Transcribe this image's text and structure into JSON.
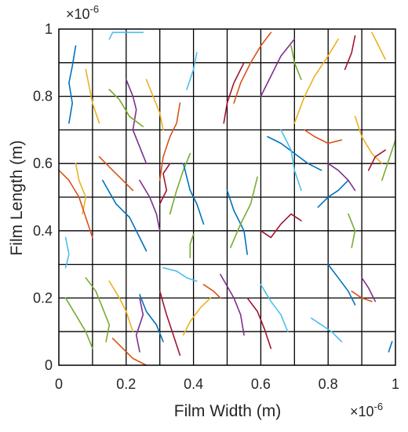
{
  "chart_data": {
    "type": "line",
    "xlabel": "Film Width (m)",
    "ylabel": "Film Length (m)",
    "xlim": [
      0,
      1
    ],
    "ylim": [
      0,
      1
    ],
    "x_exponent": "×10",
    "x_exponent_power": "-6",
    "y_exponent": "×10",
    "y_exponent_power": "-6",
    "x_ticks": [
      "0",
      "0.2",
      "0.4",
      "0.6",
      "0.8",
      "1"
    ],
    "y_ticks": [
      "0",
      "0.2",
      "0.4",
      "0.6",
      "0.8",
      "1"
    ],
    "grid": true,
    "grid_lines": [
      0.1,
      0.2,
      0.3,
      0.4,
      0.5,
      0.6,
      0.7,
      0.8,
      0.9
    ],
    "grid_color": "#000000",
    "palette": [
      "#0072BD",
      "#D95319",
      "#EDB120",
      "#7E2F8E",
      "#77AC30",
      "#4DBEEE",
      "#A2142F"
    ],
    "series": [
      {
        "color_index": 0,
        "points": [
          [
            0.05,
            0.95
          ],
          [
            0.04,
            0.89
          ],
          [
            0.03,
            0.84
          ],
          [
            0.04,
            0.78
          ],
          [
            0.03,
            0.72
          ]
        ]
      },
      {
        "color_index": 5,
        "points": [
          [
            0.15,
            0.97
          ],
          [
            0.16,
            0.99
          ],
          [
            0.25,
            0.99
          ]
        ]
      },
      {
        "color_index": 2,
        "points": [
          [
            0.08,
            0.88
          ],
          [
            0.09,
            0.83
          ],
          [
            0.1,
            0.78
          ],
          [
            0.12,
            0.72
          ]
        ]
      },
      {
        "color_index": 1,
        "points": [
          [
            0.12,
            0.62
          ],
          [
            0.16,
            0.58
          ],
          [
            0.19,
            0.55
          ],
          [
            0.22,
            0.52
          ]
        ]
      },
      {
        "color_index": 3,
        "points": [
          [
            0.2,
            0.85
          ],
          [
            0.22,
            0.8
          ],
          [
            0.23,
            0.76
          ],
          [
            0.22,
            0.7
          ],
          [
            0.24,
            0.65
          ],
          [
            0.26,
            0.6
          ]
        ]
      },
      {
        "color_index": 4,
        "points": [
          [
            0.15,
            0.82
          ],
          [
            0.18,
            0.79
          ],
          [
            0.21,
            0.74
          ],
          [
            0.25,
            0.71
          ]
        ]
      },
      {
        "color_index": 0,
        "points": [
          [
            0.13,
            0.55
          ],
          [
            0.17,
            0.48
          ],
          [
            0.21,
            0.44
          ],
          [
            0.24,
            0.38
          ],
          [
            0.26,
            0.34
          ]
        ]
      },
      {
        "color_index": 2,
        "points": [
          [
            0.26,
            0.85
          ],
          [
            0.28,
            0.8
          ],
          [
            0.3,
            0.75
          ],
          [
            0.31,
            0.7
          ]
        ]
      },
      {
        "color_index": 1,
        "points": [
          [
            0.3,
            0.55
          ],
          [
            0.31,
            0.62
          ],
          [
            0.33,
            0.68
          ],
          [
            0.35,
            0.72
          ],
          [
            0.36,
            0.78
          ]
        ]
      },
      {
        "color_index": 6,
        "points": [
          [
            0.3,
            0.48
          ],
          [
            0.32,
            0.52
          ],
          [
            0.31,
            0.57
          ],
          [
            0.33,
            0.6
          ]
        ]
      },
      {
        "color_index": 4,
        "points": [
          [
            0.33,
            0.45
          ],
          [
            0.35,
            0.52
          ],
          [
            0.37,
            0.58
          ],
          [
            0.39,
            0.63
          ]
        ]
      },
      {
        "color_index": 0,
        "points": [
          [
            0.37,
            0.6
          ],
          [
            0.39,
            0.52
          ],
          [
            0.41,
            0.48
          ],
          [
            0.43,
            0.42
          ]
        ]
      },
      {
        "color_index": 3,
        "points": [
          [
            0.24,
            0.55
          ],
          [
            0.27,
            0.5
          ],
          [
            0.29,
            0.45
          ],
          [
            0.3,
            0.4
          ]
        ]
      },
      {
        "color_index": 5,
        "points": [
          [
            0.38,
            0.82
          ],
          [
            0.4,
            0.88
          ],
          [
            0.41,
            0.93
          ]
        ]
      },
      {
        "color_index": 2,
        "points": [
          [
            0.05,
            0.6
          ],
          [
            0.06,
            0.55
          ],
          [
            0.08,
            0.5
          ],
          [
            0.07,
            0.45
          ]
        ]
      },
      {
        "color_index": 1,
        "points": [
          [
            0.0,
            0.58
          ],
          [
            0.03,
            0.55
          ],
          [
            0.06,
            0.5
          ],
          [
            0.08,
            0.44
          ],
          [
            0.1,
            0.38
          ]
        ]
      },
      {
        "color_index": 5,
        "points": [
          [
            0.02,
            0.38
          ],
          [
            0.03,
            0.33
          ],
          [
            0.02,
            0.29
          ]
        ]
      },
      {
        "color_index": 4,
        "points": [
          [
            0.02,
            0.2
          ],
          [
            0.05,
            0.15
          ],
          [
            0.08,
            0.1
          ],
          [
            0.1,
            0.05
          ]
        ]
      },
      {
        "color_index": 4,
        "points": [
          [
            0.08,
            0.26
          ],
          [
            0.11,
            0.22
          ],
          [
            0.13,
            0.17
          ],
          [
            0.15,
            0.12
          ],
          [
            0.14,
            0.07
          ]
        ]
      },
      {
        "color_index": 2,
        "points": [
          [
            0.15,
            0.25
          ],
          [
            0.18,
            0.2
          ],
          [
            0.2,
            0.16
          ],
          [
            0.22,
            0.1
          ]
        ]
      },
      {
        "color_index": 1,
        "points": [
          [
            0.16,
            0.08
          ],
          [
            0.19,
            0.05
          ],
          [
            0.22,
            0.02
          ],
          [
            0.26,
            0.0
          ]
        ]
      },
      {
        "color_index": 0,
        "points": [
          [
            0.24,
            0.21
          ],
          [
            0.26,
            0.16
          ],
          [
            0.29,
            0.12
          ],
          [
            0.31,
            0.07
          ]
        ]
      },
      {
        "color_index": 3,
        "points": [
          [
            0.24,
            0.2
          ],
          [
            0.25,
            0.15
          ],
          [
            0.23,
            0.09
          ],
          [
            0.24,
            0.04
          ]
        ]
      },
      {
        "color_index": 6,
        "points": [
          [
            0.3,
            0.22
          ],
          [
            0.32,
            0.15
          ],
          [
            0.34,
            0.09
          ],
          [
            0.36,
            0.03
          ]
        ]
      },
      {
        "color_index": 5,
        "points": [
          [
            0.31,
            0.29
          ],
          [
            0.35,
            0.28
          ],
          [
            0.38,
            0.26
          ],
          [
            0.41,
            0.25
          ]
        ]
      },
      {
        "color_index": 2,
        "points": [
          [
            0.37,
            0.09
          ],
          [
            0.39,
            0.13
          ],
          [
            0.42,
            0.17
          ],
          [
            0.45,
            0.2
          ]
        ]
      },
      {
        "color_index": 4,
        "points": [
          [
            0.39,
            0.32
          ],
          [
            0.39,
            0.36
          ],
          [
            0.4,
            0.39
          ]
        ]
      },
      {
        "color_index": 1,
        "points": [
          [
            0.43,
            0.24
          ],
          [
            0.46,
            0.22
          ],
          [
            0.48,
            0.2
          ]
        ]
      },
      {
        "color_index": 3,
        "points": [
          [
            0.48,
            0.27
          ],
          [
            0.52,
            0.2
          ],
          [
            0.54,
            0.15
          ],
          [
            0.55,
            0.09
          ]
        ]
      },
      {
        "color_index": 0,
        "points": [
          [
            0.5,
            0.52
          ],
          [
            0.52,
            0.46
          ],
          [
            0.55,
            0.4
          ],
          [
            0.56,
            0.33
          ]
        ]
      },
      {
        "color_index": 4,
        "points": [
          [
            0.51,
            0.35
          ],
          [
            0.54,
            0.42
          ],
          [
            0.57,
            0.48
          ],
          [
            0.59,
            0.56
          ]
        ]
      },
      {
        "color_index": 6,
        "points": [
          [
            0.56,
            0.2
          ],
          [
            0.59,
            0.16
          ],
          [
            0.61,
            0.11
          ],
          [
            0.63,
            0.05
          ]
        ]
      },
      {
        "color_index": 5,
        "points": [
          [
            0.6,
            0.24
          ],
          [
            0.63,
            0.19
          ],
          [
            0.66,
            0.15
          ],
          [
            0.68,
            0.1
          ]
        ]
      },
      {
        "color_index": 1,
        "points": [
          [
            0.52,
            0.78
          ],
          [
            0.54,
            0.84
          ],
          [
            0.57,
            0.9
          ],
          [
            0.6,
            0.95
          ],
          [
            0.63,
            0.99
          ]
        ]
      },
      {
        "color_index": 6,
        "points": [
          [
            0.49,
            0.72
          ],
          [
            0.5,
            0.78
          ],
          [
            0.52,
            0.84
          ],
          [
            0.55,
            0.9
          ]
        ]
      },
      {
        "color_index": 3,
        "points": [
          [
            0.6,
            0.8
          ],
          [
            0.63,
            0.86
          ],
          [
            0.66,
            0.92
          ],
          [
            0.7,
            0.97
          ]
        ]
      },
      {
        "color_index": 2,
        "points": [
          [
            0.7,
            0.72
          ],
          [
            0.73,
            0.8
          ],
          [
            0.76,
            0.86
          ],
          [
            0.8,
            0.92
          ],
          [
            0.83,
            0.97
          ]
        ]
      },
      {
        "color_index": 4,
        "points": [
          [
            0.72,
            0.85
          ],
          [
            0.7,
            0.9
          ],
          [
            0.69,
            0.95
          ]
        ]
      },
      {
        "color_index": 0,
        "points": [
          [
            0.62,
            0.68
          ],
          [
            0.66,
            0.66
          ],
          [
            0.7,
            0.63
          ],
          [
            0.74,
            0.6
          ],
          [
            0.78,
            0.58
          ]
        ]
      },
      {
        "color_index": 5,
        "points": [
          [
            0.66,
            0.7
          ],
          [
            0.69,
            0.64
          ],
          [
            0.7,
            0.58
          ],
          [
            0.72,
            0.52
          ]
        ]
      },
      {
        "color_index": 1,
        "points": [
          [
            0.73,
            0.7
          ],
          [
            0.76,
            0.68
          ],
          [
            0.8,
            0.66
          ],
          [
            0.84,
            0.67
          ]
        ]
      },
      {
        "color_index": 6,
        "points": [
          [
            0.6,
            0.4
          ],
          [
            0.63,
            0.38
          ],
          [
            0.66,
            0.42
          ],
          [
            0.69,
            0.45
          ],
          [
            0.72,
            0.43
          ]
        ]
      },
      {
        "color_index": 0,
        "points": [
          [
            0.77,
            0.47
          ],
          [
            0.8,
            0.5
          ],
          [
            0.83,
            0.52
          ],
          [
            0.86,
            0.55
          ]
        ]
      },
      {
        "color_index": 3,
        "points": [
          [
            0.8,
            0.6
          ],
          [
            0.83,
            0.58
          ],
          [
            0.86,
            0.55
          ],
          [
            0.88,
            0.52
          ]
        ]
      },
      {
        "color_index": 4,
        "points": [
          [
            0.86,
            0.45
          ],
          [
            0.88,
            0.4
          ],
          [
            0.87,
            0.35
          ]
        ]
      },
      {
        "color_index": 2,
        "points": [
          [
            0.88,
            0.74
          ],
          [
            0.9,
            0.68
          ],
          [
            0.93,
            0.63
          ],
          [
            0.96,
            0.6
          ]
        ]
      },
      {
        "color_index": 6,
        "points": [
          [
            0.92,
            0.58
          ],
          [
            0.94,
            0.62
          ],
          [
            0.97,
            0.64
          ]
        ]
      },
      {
        "color_index": 4,
        "points": [
          [
            0.96,
            0.55
          ],
          [
            0.98,
            0.61
          ],
          [
            1.0,
            0.67
          ]
        ]
      },
      {
        "color_index": 1,
        "points": [
          [
            0.87,
            0.22
          ],
          [
            0.9,
            0.2
          ],
          [
            0.93,
            0.19
          ]
        ]
      },
      {
        "color_index": 5,
        "points": [
          [
            0.75,
            0.14
          ],
          [
            0.78,
            0.12
          ],
          [
            0.81,
            0.1
          ],
          [
            0.84,
            0.07
          ]
        ]
      },
      {
        "color_index": 0,
        "points": [
          [
            0.8,
            0.3
          ],
          [
            0.83,
            0.26
          ],
          [
            0.86,
            0.22
          ],
          [
            0.88,
            0.18
          ]
        ]
      },
      {
        "color_index": 3,
        "points": [
          [
            0.9,
            0.26
          ],
          [
            0.92,
            0.23
          ],
          [
            0.94,
            0.19
          ]
        ]
      },
      {
        "color_index": 2,
        "points": [
          [
            0.93,
            0.99
          ],
          [
            0.95,
            0.95
          ],
          [
            0.97,
            0.91
          ]
        ]
      },
      {
        "color_index": 6,
        "points": [
          [
            0.85,
            0.88
          ],
          [
            0.87,
            0.93
          ],
          [
            0.88,
            0.98
          ]
        ]
      },
      {
        "color_index": 0,
        "points": [
          [
            0.98,
            0.04
          ],
          [
            0.99,
            0.07
          ]
        ]
      }
    ]
  }
}
